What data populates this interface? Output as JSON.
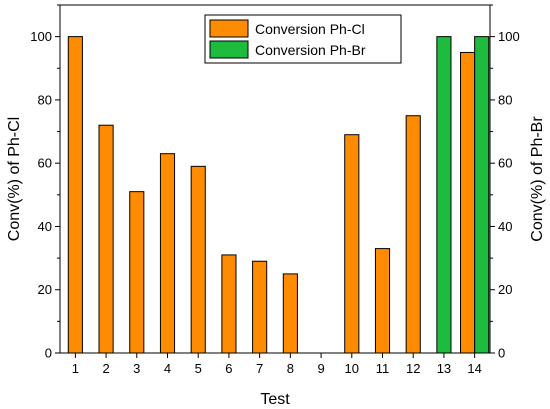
{
  "chart_data": {
    "type": "bar",
    "categories": [
      "1",
      "2",
      "3",
      "4",
      "5",
      "6",
      "7",
      "8",
      "9",
      "10",
      "11",
      "12",
      "13",
      "14"
    ],
    "series": [
      {
        "name": "Conversion Ph-Cl",
        "color": "#ff8c00",
        "axis": "left",
        "values": [
          100,
          72,
          51,
          63,
          59,
          31,
          29,
          25,
          0,
          69,
          33,
          75,
          0,
          95
        ]
      },
      {
        "name": "Conversion Ph-Br",
        "color": "#1dbb3e",
        "axis": "right",
        "values": [
          null,
          null,
          null,
          null,
          null,
          null,
          null,
          null,
          null,
          null,
          null,
          null,
          100,
          100
        ]
      }
    ],
    "xlabel": "Test",
    "ylabel": "Conv(%) of Ph-Cl",
    "ylabel_right": "Conv(%) of Ph-Br",
    "ylim": [
      0,
      110
    ],
    "yticks": [
      0,
      20,
      40,
      60,
      80,
      100
    ],
    "legend_position": "top-center",
    "grid": false
  }
}
